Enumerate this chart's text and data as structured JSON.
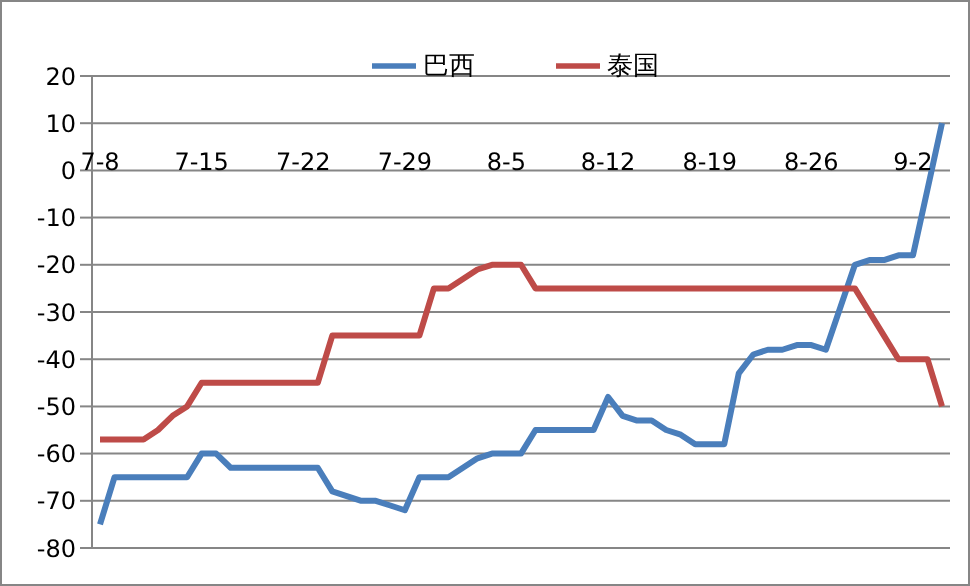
{
  "chart_data": {
    "type": "line",
    "categories": [
      "7-8",
      null,
      null,
      null,
      null,
      null,
      null,
      "7-15",
      null,
      null,
      null,
      null,
      null,
      null,
      "7-22",
      null,
      null,
      null,
      null,
      null,
      null,
      "7-29",
      null,
      null,
      null,
      null,
      null,
      null,
      "8-5",
      null,
      null,
      null,
      null,
      null,
      null,
      "8-12",
      null,
      null,
      null,
      null,
      null,
      null,
      "8-19",
      null,
      null,
      null,
      null,
      null,
      null,
      "8-26",
      null,
      null,
      null,
      null,
      null,
      null,
      "9-2",
      null,
      null
    ],
    "series": [
      {
        "name": "巴西",
        "color": "#4a7ebb",
        "values": [
          -75,
          -65,
          -65,
          -65,
          -65,
          -65,
          -65,
          -60,
          -60,
          -63,
          -63,
          -63,
          -63,
          -63,
          -63,
          -63,
          -68,
          -69,
          -70,
          -70,
          -71,
          -72,
          -65,
          -65,
          -65,
          -63,
          -61,
          -60,
          -60,
          -60,
          -55,
          -55,
          -55,
          -55,
          -55,
          -48,
          -52,
          -53,
          -53,
          -55,
          -56,
          -58,
          -58,
          -58,
          -43,
          -39,
          -38,
          -38,
          -37,
          -37,
          -38,
          -29,
          -20,
          -19,
          -19,
          -18,
          -18,
          -4,
          10
        ]
      },
      {
        "name": "泰国",
        "color": "#be4b48",
        "values": [
          -57,
          -57,
          -57,
          -57,
          -55,
          -52,
          -50,
          -45,
          -45,
          -45,
          -45,
          -45,
          -45,
          -45,
          -45,
          -45,
          -35,
          -35,
          -35,
          -35,
          -35,
          -35,
          -35,
          -25,
          -25,
          -23,
          -21,
          -20,
          -20,
          -20,
          -25,
          -25,
          -25,
          -25,
          -25,
          -25,
          -25,
          -25,
          -25,
          -25,
          -25,
          -25,
          -25,
          -25,
          -25,
          -25,
          -25,
          -25,
          -25,
          -25,
          -25,
          -25,
          -25,
          -30,
          -35,
          -40,
          -40,
          -40,
          -50
        ]
      }
    ],
    "ylim": [
      -80,
      20
    ],
    "yticks": [
      -80,
      -70,
      -60,
      -50,
      -40,
      -30,
      -20,
      -10,
      0,
      10,
      20
    ],
    "grid": "y",
    "legend": "top",
    "marker": "none",
    "line_style": "solid"
  }
}
